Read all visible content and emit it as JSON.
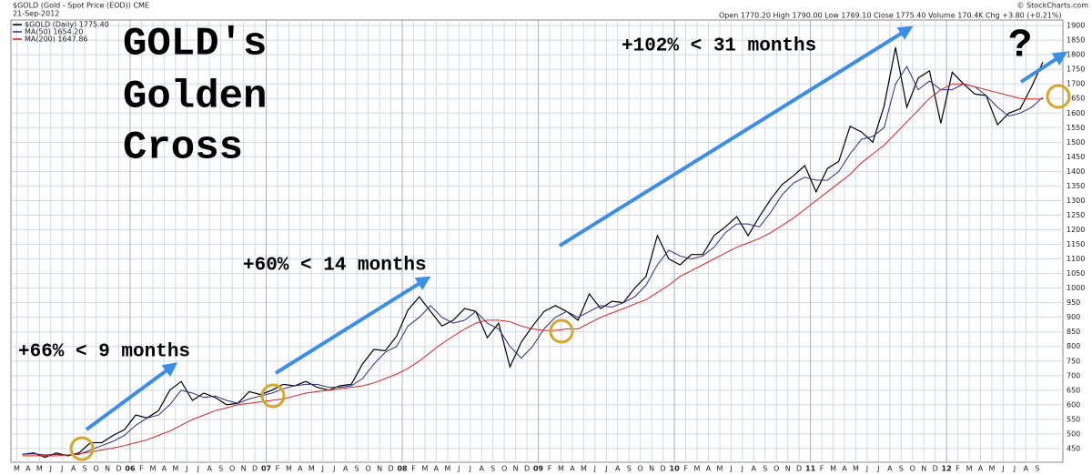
{
  "chart_data": {
    "type": "line",
    "title": "$GOLD (Gold - Spot Price (EOD)) CME",
    "subtitle": "21-Sep-2012",
    "source": "© StockCharts.com",
    "quote": "Open 1770.20 High 1790.00 Low 1769.10 Close 1775.40 Volume 170.4K Chg +3.80 (+0.21%)",
    "annotations": [
      "GOLD's",
      "Golden",
      "Cross",
      "+66% < 9 months",
      "+60% < 14 months",
      "+102% < 31 months",
      "?"
    ],
    "categories": [
      "M",
      "A",
      "M",
      "J",
      "J",
      "A",
      "S",
      "O",
      "N",
      "D",
      "06",
      "F",
      "M",
      "A",
      "M",
      "J",
      "J",
      "A",
      "S",
      "O",
      "N",
      "D",
      "07",
      "F",
      "M",
      "A",
      "M",
      "J",
      "J",
      "A",
      "S",
      "O",
      "N",
      "D",
      "08",
      "F",
      "M",
      "A",
      "M",
      "J",
      "J",
      "A",
      "S",
      "O",
      "N",
      "D",
      "09",
      "F",
      "M",
      "A",
      "M",
      "J",
      "J",
      "A",
      "S",
      "O",
      "N",
      "D",
      "10",
      "F",
      "M",
      "A",
      "M",
      "J",
      "J",
      "A",
      "S",
      "O",
      "N",
      "D",
      "11",
      "F",
      "M",
      "A",
      "M",
      "J",
      "J",
      "A",
      "S",
      "O",
      "N",
      "D",
      "12",
      "F",
      "M",
      "A",
      "M",
      "J",
      "J",
      "A",
      "S"
    ],
    "series": [
      {
        "name": "$GOLD (Daily) 1775.40",
        "color": "#000000",
        "values": [
          430,
          435,
          420,
          435,
          425,
          435,
          470,
          470,
          495,
          515,
          565,
          555,
          580,
          650,
          680,
          615,
          640,
          625,
          600,
          605,
          645,
          635,
          650,
          670,
          665,
          680,
          660,
          650,
          665,
          670,
          740,
          790,
          785,
          835,
          925,
          970,
          920,
          870,
          890,
          930,
          920,
          830,
          880,
          730,
          815,
          870,
          920,
          940,
          920,
          890,
          980,
          930,
          955,
          950,
          1000,
          1040,
          1180,
          1100,
          1080,
          1115,
          1115,
          1180,
          1210,
          1245,
          1180,
          1245,
          1305,
          1355,
          1385,
          1420,
          1330,
          1410,
          1435,
          1555,
          1535,
          1500,
          1625,
          1825,
          1620,
          1720,
          1745,
          1565,
          1740,
          1700,
          1665,
          1660,
          1560,
          1600,
          1615,
          1690,
          1775
        ]
      },
      {
        "name": "MA(50) 1654.20",
        "color": "#2b2b8c",
        "values": [
          430,
          432,
          428,
          430,
          428,
          430,
          445,
          460,
          475,
          495,
          530,
          555,
          565,
          600,
          650,
          640,
          625,
          630,
          615,
          605,
          620,
          630,
          640,
          655,
          665,
          670,
          670,
          660,
          660,
          665,
          690,
          740,
          780,
          800,
          870,
          900,
          940,
          900,
          880,
          890,
          920,
          880,
          860,
          800,
          760,
          800,
          860,
          900,
          920,
          900,
          920,
          940,
          935,
          950,
          970,
          1010,
          1080,
          1130,
          1110,
          1100,
          1110,
          1140,
          1190,
          1220,
          1220,
          1210,
          1260,
          1320,
          1360,
          1380,
          1370,
          1370,
          1400,
          1460,
          1510,
          1520,
          1550,
          1700,
          1760,
          1680,
          1710,
          1680,
          1680,
          1700,
          1690,
          1660,
          1620,
          1590,
          1600,
          1620,
          1654
        ]
      },
      {
        "name": "MA(200) 1647.86",
        "color": "#e02020",
        "values": [
          425,
          425,
          425,
          425,
          428,
          432,
          438,
          445,
          452,
          460,
          470,
          480,
          495,
          510,
          530,
          550,
          565,
          580,
          590,
          600,
          605,
          610,
          615,
          620,
          630,
          640,
          645,
          650,
          655,
          660,
          665,
          675,
          690,
          705,
          725,
          750,
          780,
          810,
          835,
          860,
          880,
          890,
          890,
          885,
          870,
          860,
          855,
          855,
          860,
          860,
          880,
          900,
          915,
          930,
          945,
          960,
          985,
          1010,
          1040,
          1060,
          1080,
          1100,
          1120,
          1140,
          1155,
          1170,
          1190,
          1215,
          1240,
          1270,
          1300,
          1330,
          1360,
          1390,
          1430,
          1460,
          1490,
          1530,
          1570,
          1610,
          1650,
          1680,
          1700,
          1700,
          1690,
          1680,
          1670,
          1660,
          1650,
          1648,
          1648
        ]
      }
    ],
    "ylim": [
      403,
      1919
    ],
    "yticks": [
      450,
      500,
      550,
      600,
      650,
      700,
      750,
      800,
      850,
      900,
      950,
      1000,
      1050,
      1100,
      1150,
      1200,
      1250,
      1300,
      1350,
      1400,
      1450,
      1500,
      1550,
      1600,
      1650,
      1700,
      1750,
      1800,
      1850,
      1900
    ],
    "grid": true
  }
}
